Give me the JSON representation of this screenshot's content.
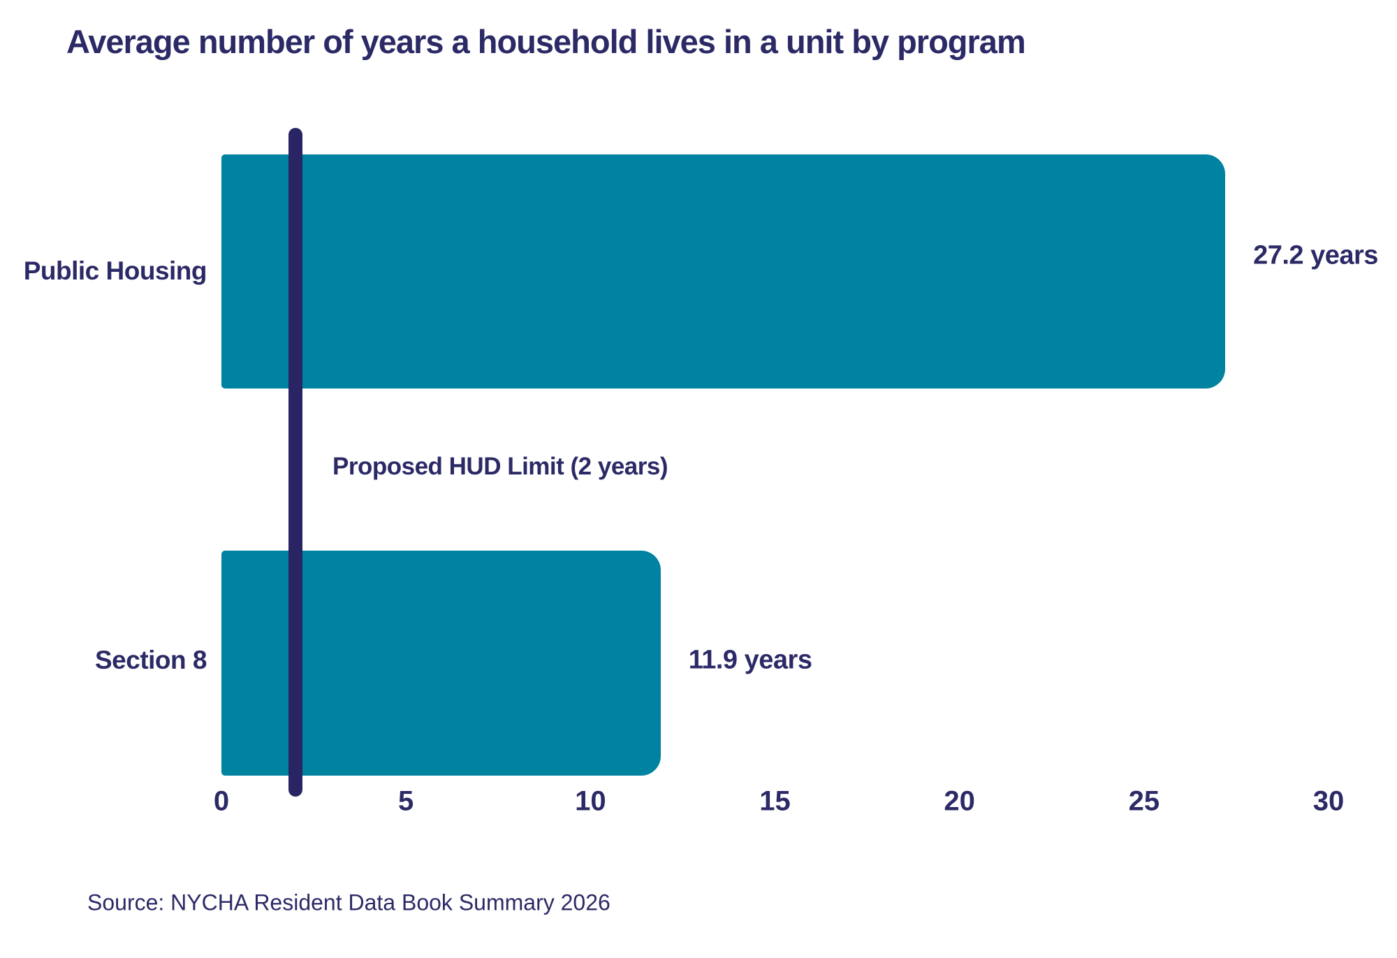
{
  "colors": {
    "bar": "#0082A1",
    "navy_text": "#2B2A66",
    "reference_line": "#292464",
    "background": "#FFFFFF"
  },
  "chart_data": {
    "type": "bar",
    "orientation": "horizontal",
    "title": "Average number of years a household lives in a unit by program",
    "categories": [
      "Public Housing",
      "Section 8"
    ],
    "values": [
      27.2,
      11.9
    ],
    "value_labels": [
      "27.2 years",
      "11.9 years"
    ],
    "x_ticks": [
      0,
      5,
      10,
      15,
      20,
      25,
      30
    ],
    "xlim": [
      0,
      30
    ],
    "xlabel": "",
    "ylabel": "",
    "grid": false,
    "legend": "none",
    "reference_line": {
      "value": 2,
      "label": "Proposed HUD Limit (2 years)"
    },
    "source": "Source: NYCHA Resident Data Book Summary 2026"
  }
}
